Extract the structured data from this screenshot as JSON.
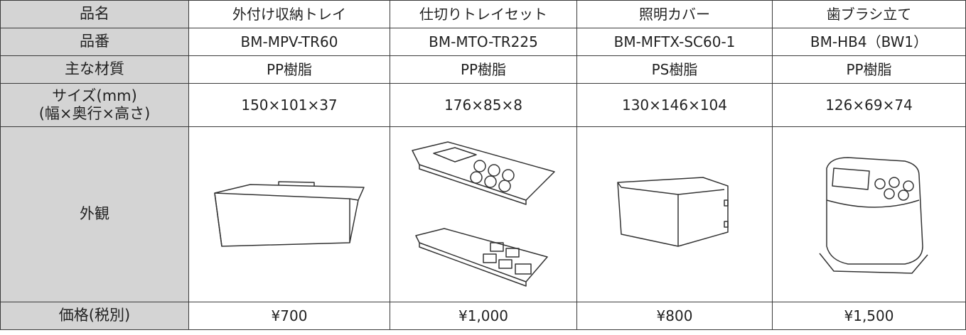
{
  "table": {
    "rows": [
      {
        "label": "品名",
        "cells": [
          "外付け収納トレイ",
          "仕切りトレイセット",
          "照明カバー",
          "歯ブラシ立て"
        ]
      },
      {
        "label": "品番",
        "cells": [
          "BM-MPV-TR60",
          "BM-MTO-TR225",
          "BM-MFTX-SC60-1",
          "BM-HB4（BW1）"
        ]
      },
      {
        "label": "主な材質",
        "cells": [
          "PP樹脂",
          "PP樹脂",
          "PS樹脂",
          "PP樹脂"
        ]
      },
      {
        "label": [
          "サイズ(mm)",
          "(幅×奥行×高さ)"
        ],
        "cells": [
          "150×101×37",
          "176×85×8",
          "130×146×104",
          "126×69×74"
        ]
      },
      {
        "label": "外観"
      },
      {
        "label": "価格(税別)",
        "cells": [
          "¥700",
          "¥1,000",
          "¥800",
          "¥1,500"
        ]
      }
    ]
  }
}
